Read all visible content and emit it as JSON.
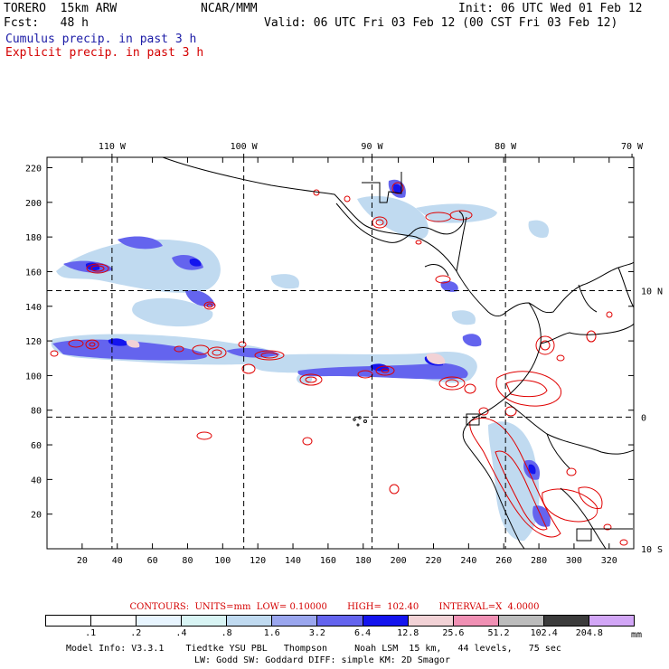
{
  "header": {
    "model": "TORERO  15km ARW",
    "org": "NCAR/MMM",
    "init": "Init: 06 UTC Wed 01 Feb 12",
    "fcst": "Fcst:   48 h",
    "valid": "Valid: 06 UTC Fri 03 Feb 12 (00 CST Fri 03 Feb 12)",
    "line_cumulus": "Cumulus precip. in past 3 h",
    "line_explicit": "Explicit precip. in past 3 h"
  },
  "colors": {
    "cumulus_text": "#1a1aa6",
    "explicit_text": "#d40000",
    "contour": "#e00000",
    "coast": "#000000"
  },
  "map": {
    "lon_labels": [
      {
        "text": "110 W",
        "x": 37
      },
      {
        "text": "100 W",
        "x": 112
      },
      {
        "text": "90 W",
        "x": 185
      },
      {
        "text": "80 W",
        "x": 261
      },
      {
        "text": "70 W",
        "x": 333
      }
    ],
    "lat_labels": [
      {
        "text": "10 N",
        "y": 149
      },
      {
        "text": "0",
        "y": 76
      },
      {
        "text": "10 S",
        "y": 0
      }
    ],
    "x_ticks": [
      "20",
      "40",
      "60",
      "80",
      "100",
      "120",
      "140",
      "160",
      "180",
      "200",
      "220",
      "240",
      "260",
      "280",
      "300",
      "320"
    ],
    "y_ticks": [
      "20",
      "40",
      "60",
      "80",
      "100",
      "120",
      "140",
      "160",
      "180",
      "200",
      "220"
    ],
    "grid_x_values": [
      37,
      112,
      185,
      261
    ],
    "grid_y_values": [
      76,
      149
    ],
    "xlim": [
      0,
      334
    ],
    "ylim": [
      0,
      226
    ]
  },
  "contour_info": "CONTOURS:  UNITS=mm  LOW= 0.10000       HIGH=  102.40       INTERVAL=X  4.0000",
  "legend": {
    "units": "mm",
    "labels": [
      ".1",
      ".2",
      ".4",
      ".8",
      "1.6",
      "3.2",
      "6.4",
      "12.8",
      "25.6",
      "51.2",
      "102.4",
      "204.8"
    ],
    "colors": [
      "#ffffff",
      "#ffffff",
      "#e8f5ff",
      "#d8f4f4",
      "#c0daf0",
      "#9aa6ee",
      "#6464ee",
      "#1414ee",
      "#f2d2d6",
      "#f090b4",
      "#bcbcbc",
      "#3c3c3c",
      "#d2a6f6"
    ]
  },
  "footer": {
    "line1": "Model Info: V3.3.1    Tiedtke YSU PBL   Thompson     Noah LSM  15 km,   44 levels,   75 sec",
    "line2": "LW: Godd SW: Goddard DIFF: simple KM: 2D Smagor"
  }
}
